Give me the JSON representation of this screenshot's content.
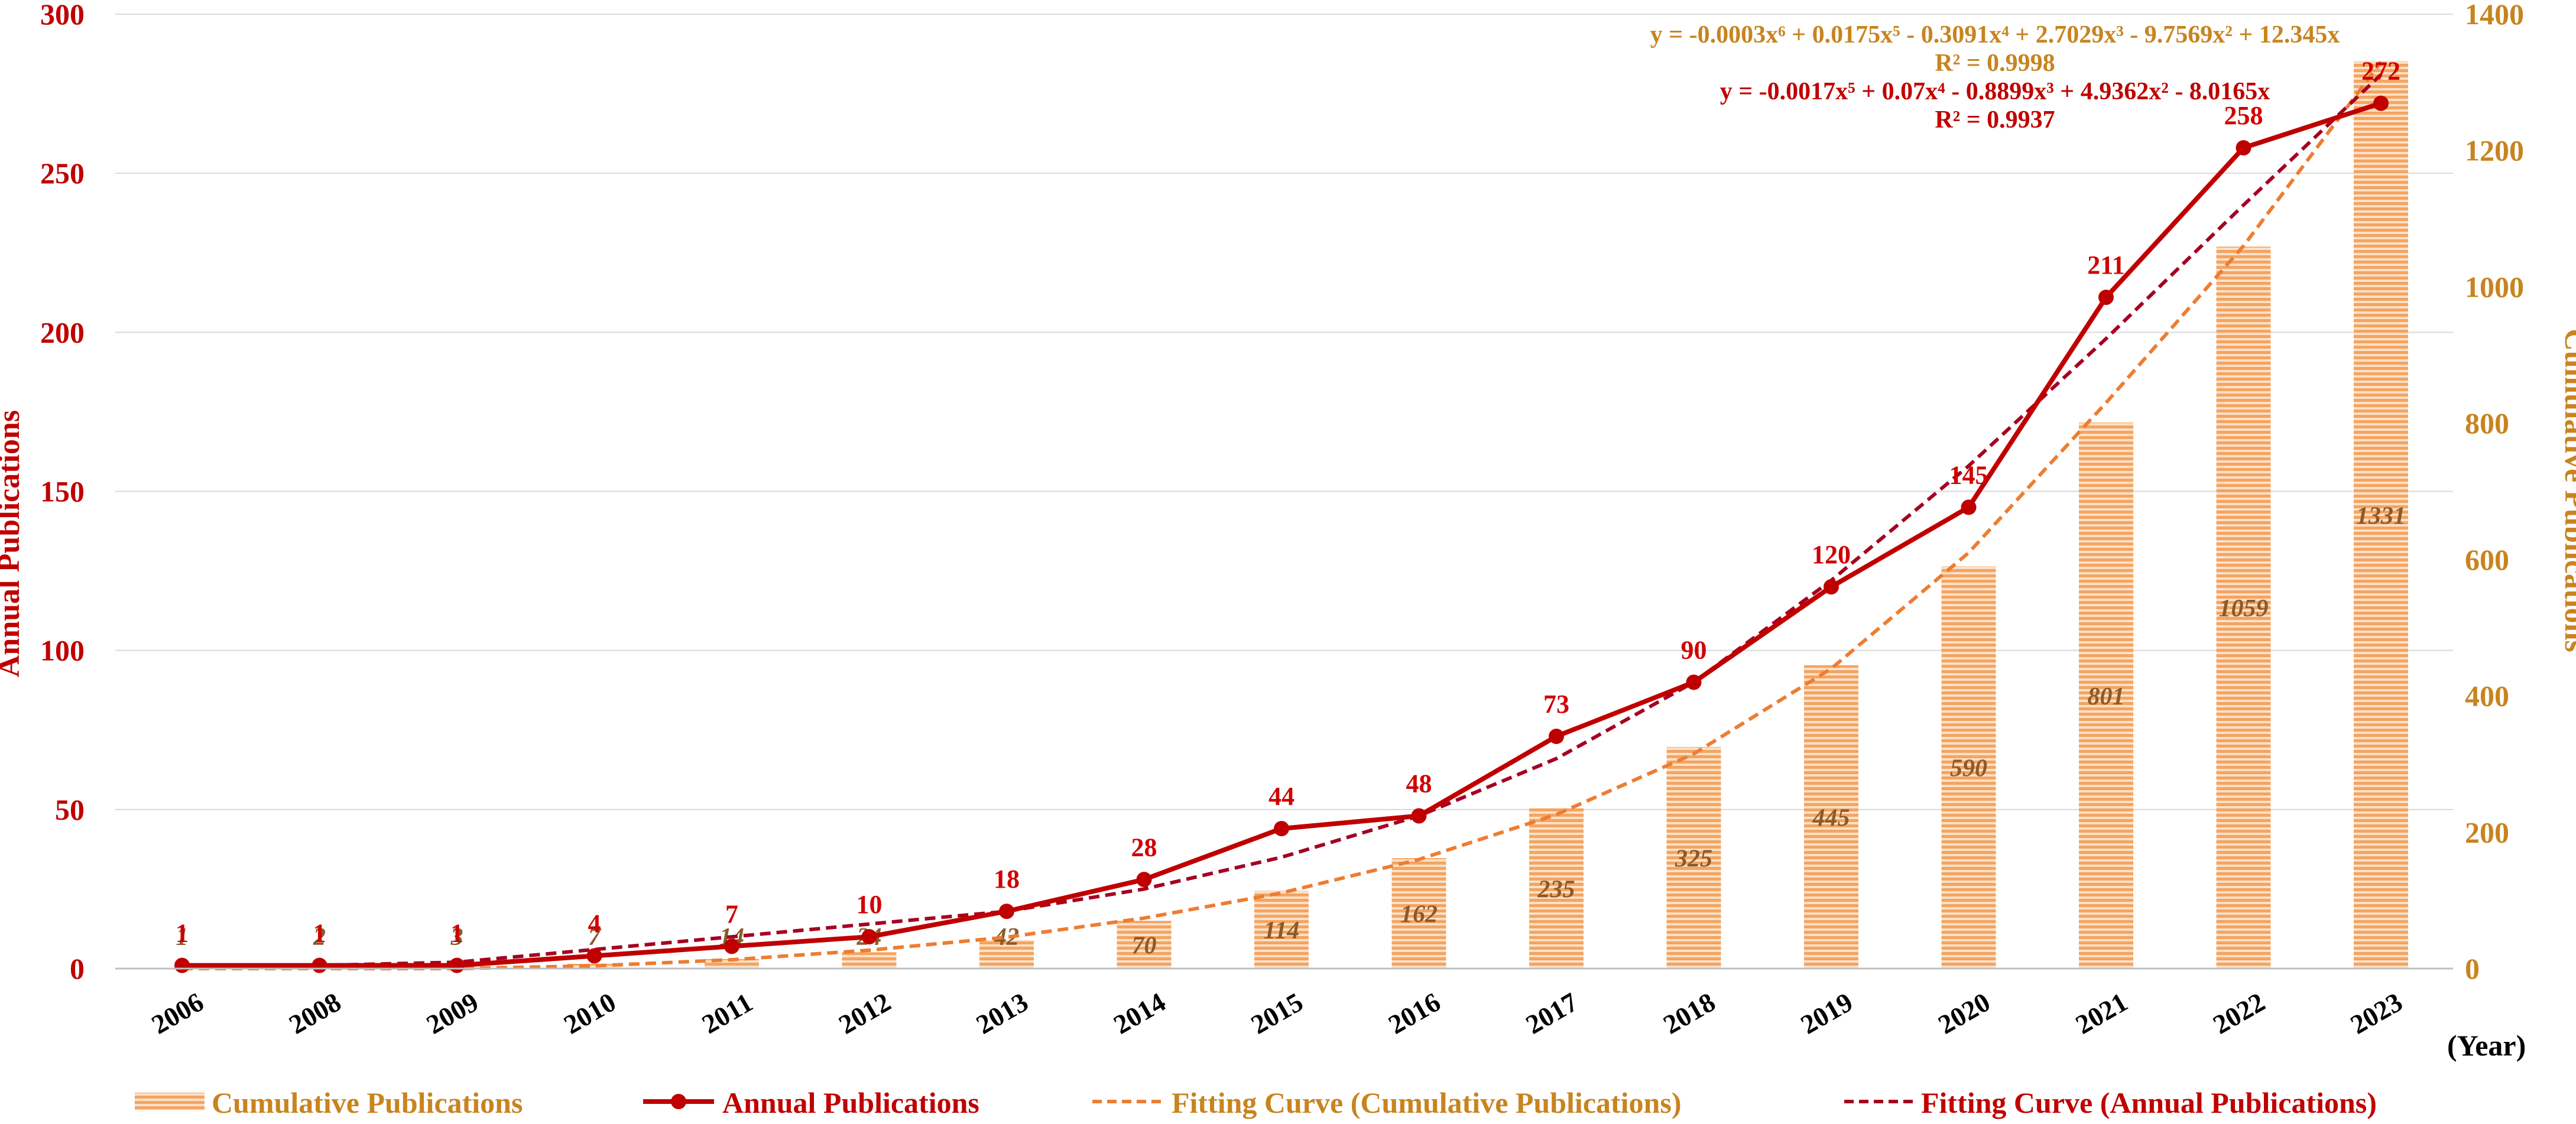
{
  "chart_data": {
    "type": "bar",
    "categories": [
      "2006",
      "2008",
      "2009",
      "2010",
      "2011",
      "2012",
      "2013",
      "2014",
      "2015",
      "2016",
      "2017",
      "2018",
      "2019",
      "2020",
      "2021",
      "2022",
      "2023"
    ],
    "series": [
      {
        "name": "Cumulative Publications",
        "type": "bar",
        "axis": "right",
        "values": [
          1,
          2,
          3,
          7,
          14,
          24,
          42,
          70,
          114,
          162,
          235,
          325,
          445,
          590,
          801,
          1059,
          1331
        ],
        "labels": [
          "1",
          "2",
          "3",
          "7",
          "14",
          "24",
          "42",
          "70",
          "114",
          "162",
          "235",
          "325",
          "445",
          "590",
          "801",
          "1059",
          "1331"
        ],
        "color": "#F4B183"
      },
      {
        "name": "Annual Publications",
        "type": "line",
        "axis": "left",
        "values": [
          1,
          1,
          1,
          4,
          7,
          10,
          18,
          28,
          44,
          48,
          73,
          90,
          120,
          145,
          211,
          258,
          272
        ],
        "labels": [
          "1",
          "1",
          "1",
          "4",
          "7",
          "10",
          "18",
          "28",
          "44",
          "48",
          "73",
          "90",
          "120",
          "145",
          "211",
          "258",
          "272"
        ],
        "color": "#C00000"
      },
      {
        "name": "Fitting Curve (Cumulative Publications)",
        "type": "line",
        "style": "dashed",
        "axis": "right",
        "values": [
          0,
          0,
          0,
          4,
          13,
          27,
          46,
          74,
          111,
          160,
          226,
          315,
          440,
          610,
          830,
          1060,
          1330
        ],
        "color": "#ED7D31"
      },
      {
        "name": "Fitting Curve (Annual Publications)",
        "type": "line",
        "style": "dashed",
        "axis": "left",
        "values": [
          1,
          1,
          2,
          6,
          10,
          14,
          18,
          25,
          35,
          48,
          66,
          90,
          122,
          158,
          198,
          240,
          281
        ],
        "color": "#A50021"
      }
    ],
    "y_left": {
      "label": "Annual Publications",
      "ylim": [
        0,
        300
      ],
      "ticks": [
        "0",
        "50",
        "100",
        "150",
        "200",
        "250",
        "300"
      ]
    },
    "y_right": {
      "label": "Cumulative Publications",
      "ylim": [
        0,
        1400
      ],
      "ticks": [
        "0",
        "200",
        "400",
        "600",
        "800",
        "1000",
        "1200",
        "1400"
      ]
    },
    "xlabel": "(Year)",
    "grid": true,
    "legend_position": "bottom",
    "legend": {
      "cumulative": "Cumulative Publications",
      "annual": "Annual Publications",
      "fit_cumulative": "Fitting Curve (Cumulative Publications)",
      "fit_annual": "Fitting Curve (Annual Publications)"
    },
    "annotations": {
      "cumulative_equation": "y = -0.0003x⁶ + 0.0175x⁵ - 0.3091x⁴ + 2.7029x³ - 9.7569x² + 12.345x",
      "cumulative_r2": "R² = 0.9998",
      "annual_equation": "y = -0.0017x⁵ + 0.07x⁴ - 0.8899x³ + 4.9362x² - 8.0165x",
      "annual_r2": "R² = 0.9937"
    }
  }
}
